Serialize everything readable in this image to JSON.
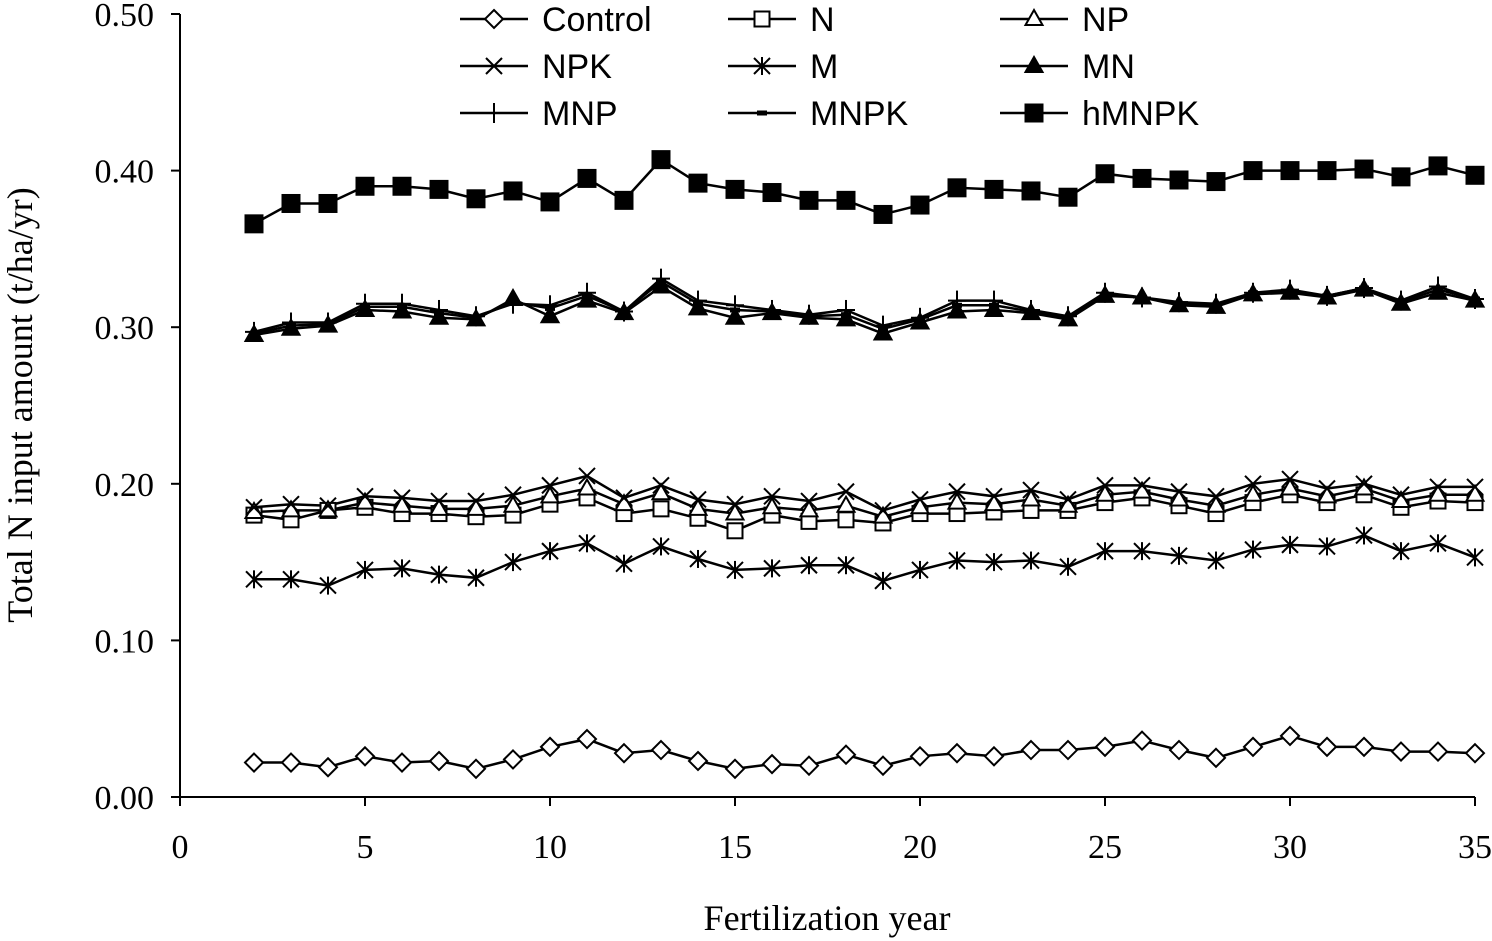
{
  "chart_data": {
    "type": "line",
    "xlabel": "Fertilization year",
    "ylabel": "Total N input amount (t/ha/yr)",
    "xlim": [
      0,
      35
    ],
    "ylim": [
      0,
      0.5
    ],
    "x_ticks": [
      "0",
      "5",
      "10",
      "15",
      "20",
      "25",
      "30",
      "35"
    ],
    "y_ticks": [
      "0.00",
      "0.10",
      "0.20",
      "0.30",
      "0.40",
      "0.50"
    ],
    "grid": false,
    "legend_position": "top",
    "x": [
      2,
      3,
      4,
      5,
      6,
      7,
      8,
      9,
      10,
      11,
      12,
      13,
      14,
      15,
      16,
      17,
      18,
      19,
      20,
      21,
      22,
      23,
      24,
      25,
      26,
      27,
      28,
      29,
      30,
      31,
      32,
      33,
      34,
      35
    ],
    "series": [
      {
        "name": "Control",
        "marker": "diamond-open",
        "values": [
          0.022,
          0.022,
          0.019,
          0.026,
          0.022,
          0.023,
          0.018,
          0.024,
          0.032,
          0.037,
          0.028,
          0.03,
          0.023,
          0.018,
          0.021,
          0.02,
          0.027,
          0.02,
          0.026,
          0.028,
          0.026,
          0.03,
          0.03,
          0.032,
          0.036,
          0.03,
          0.025,
          0.032,
          0.039,
          0.032,
          0.032,
          0.029,
          0.029,
          0.028
        ]
      },
      {
        "name": "N",
        "marker": "square-open",
        "values": [
          0.18,
          0.177,
          0.183,
          0.185,
          0.181,
          0.181,
          0.179,
          0.18,
          0.187,
          0.191,
          0.181,
          0.184,
          0.178,
          0.17,
          0.18,
          0.176,
          0.177,
          0.175,
          0.181,
          0.181,
          0.182,
          0.183,
          0.183,
          0.188,
          0.191,
          0.186,
          0.181,
          0.188,
          0.193,
          0.188,
          0.193,
          0.185,
          0.189,
          0.188
        ]
      },
      {
        "name": "NP",
        "marker": "triangle-open",
        "values": [
          0.182,
          0.183,
          0.183,
          0.188,
          0.186,
          0.184,
          0.184,
          0.186,
          0.192,
          0.197,
          0.187,
          0.194,
          0.184,
          0.181,
          0.185,
          0.183,
          0.186,
          0.179,
          0.185,
          0.188,
          0.187,
          0.19,
          0.186,
          0.193,
          0.195,
          0.19,
          0.186,
          0.193,
          0.197,
          0.192,
          0.197,
          0.189,
          0.193,
          0.193
        ]
      },
      {
        "name": "NPK",
        "marker": "x",
        "values": [
          0.185,
          0.187,
          0.186,
          0.192,
          0.191,
          0.189,
          0.189,
          0.193,
          0.199,
          0.205,
          0.191,
          0.199,
          0.19,
          0.187,
          0.192,
          0.189,
          0.195,
          0.183,
          0.19,
          0.195,
          0.192,
          0.196,
          0.19,
          0.199,
          0.199,
          0.195,
          0.192,
          0.2,
          0.203,
          0.197,
          0.2,
          0.193,
          0.198,
          0.198
        ]
      },
      {
        "name": "M",
        "marker": "asterisk",
        "values": [
          0.139,
          0.139,
          0.135,
          0.145,
          0.146,
          0.142,
          0.14,
          0.15,
          0.157,
          0.162,
          0.149,
          0.16,
          0.152,
          0.145,
          0.146,
          0.148,
          0.148,
          0.138,
          0.145,
          0.151,
          0.15,
          0.151,
          0.147,
          0.157,
          0.157,
          0.154,
          0.151,
          0.158,
          0.161,
          0.16,
          0.167,
          0.157,
          0.162,
          0.153
        ]
      },
      {
        "name": "MN",
        "marker": "triangle-filled",
        "values": [
          0.295,
          0.299,
          0.301,
          0.311,
          0.31,
          0.306,
          0.305,
          0.318,
          0.307,
          0.317,
          0.309,
          0.326,
          0.312,
          0.306,
          0.309,
          0.306,
          0.305,
          0.296,
          0.303,
          0.31,
          0.311,
          0.309,
          0.305,
          0.32,
          0.319,
          0.314,
          0.313,
          0.321,
          0.322,
          0.319,
          0.324,
          0.315,
          0.322,
          0.317
        ]
      },
      {
        "name": "MNP",
        "marker": "plus",
        "values": [
          0.297,
          0.303,
          0.303,
          0.315,
          0.315,
          0.311,
          0.307,
          0.315,
          0.314,
          0.322,
          0.31,
          0.331,
          0.317,
          0.314,
          0.311,
          0.308,
          0.311,
          0.301,
          0.306,
          0.317,
          0.317,
          0.311,
          0.307,
          0.322,
          0.319,
          0.316,
          0.315,
          0.322,
          0.324,
          0.32,
          0.325,
          0.317,
          0.326,
          0.318
        ]
      },
      {
        "name": "MNPK",
        "marker": "dash",
        "values": [
          0.296,
          0.301,
          0.302,
          0.313,
          0.313,
          0.309,
          0.306,
          0.316,
          0.312,
          0.32,
          0.31,
          0.329,
          0.315,
          0.311,
          0.31,
          0.307,
          0.308,
          0.299,
          0.305,
          0.314,
          0.314,
          0.31,
          0.306,
          0.321,
          0.319,
          0.315,
          0.314,
          0.322,
          0.323,
          0.32,
          0.325,
          0.316,
          0.324,
          0.318
        ]
      },
      {
        "name": "hMNPK",
        "marker": "square-filled",
        "values": [
          0.366,
          0.379,
          0.379,
          0.39,
          0.39,
          0.388,
          0.382,
          0.387,
          0.38,
          0.395,
          0.381,
          0.407,
          0.392,
          0.388,
          0.386,
          0.381,
          0.381,
          0.372,
          0.378,
          0.389,
          0.388,
          0.387,
          0.383,
          0.398,
          0.395,
          0.394,
          0.393,
          0.4,
          0.4,
          0.4,
          0.401,
          0.396,
          0.403,
          0.397
        ]
      }
    ]
  }
}
